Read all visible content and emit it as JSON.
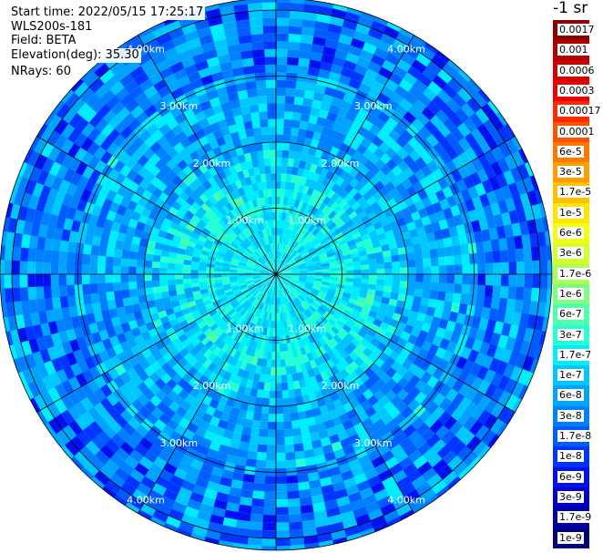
{
  "header": {
    "start_time": "Start time: 2022/05/15 17:25:17",
    "instrument": "WLS200s-181",
    "field": "Field: BETA",
    "elevation": "Elevation(deg): 35.30",
    "nrays": "NRays: 60"
  },
  "colorbar": {
    "unit": "-1 sr",
    "entries": [
      {
        "label": "0.0017",
        "color": "#8b0000"
      },
      {
        "label": "0.001",
        "color": "#b00000"
      },
      {
        "label": "0.0006",
        "color": "#d40000"
      },
      {
        "label": "0.0003",
        "color": "#ee0000"
      },
      {
        "label": "0.00017",
        "color": "#ff2a00"
      },
      {
        "label": "0.0001",
        "color": "#ff5000"
      },
      {
        "label": "6e-5",
        "color": "#ff7800"
      },
      {
        "label": "3e-5",
        "color": "#ff9c00"
      },
      {
        "label": "1.7e-5",
        "color": "#ffc000"
      },
      {
        "label": "1e-5",
        "color": "#ffe400"
      },
      {
        "label": "6e-6",
        "color": "#f4ff0a"
      },
      {
        "label": "3e-6",
        "color": "#d2ff2d"
      },
      {
        "label": "1.7e-6",
        "color": "#aaff55"
      },
      {
        "label": "1e-6",
        "color": "#7eff80"
      },
      {
        "label": "6e-7",
        "color": "#50ffaa"
      },
      {
        "label": "3e-7",
        "color": "#24ffd4"
      },
      {
        "label": "1.7e-7",
        "color": "#00ecff"
      },
      {
        "label": "1e-7",
        "color": "#00c8ff"
      },
      {
        "label": "6e-8",
        "color": "#00a4ff"
      },
      {
        "label": "3e-8",
        "color": "#0080ff"
      },
      {
        "label": "1.7e-8",
        "color": "#005cff"
      },
      {
        "label": "1e-8",
        "color": "#0034ff"
      },
      {
        "label": "6e-9",
        "color": "#0010ee"
      },
      {
        "label": "3e-9",
        "color": "#0000c8"
      },
      {
        "label": "1.7e-9",
        "color": "#0000a0"
      },
      {
        "label": "1e-9",
        "color": "#00007a"
      }
    ]
  },
  "chart_data": {
    "type": "heatmap",
    "projection": "polar (PPI scan)",
    "field": "BETA",
    "elevation_deg": 35.3,
    "n_rays": 60,
    "range_rings_km": [
      1.0,
      2.0,
      3.0,
      4.0
    ],
    "range_ring_labels": [
      "1.00km",
      "2.00km",
      "3.00km",
      "4.00km"
    ],
    "spoke_interval_deg": 30,
    "max_range_km": 4.2,
    "radial_profile": [
      {
        "range_km": 0.25,
        "value": 1.7e-07
      },
      {
        "range_km": 0.75,
        "value": 1.7e-07
      },
      {
        "range_km": 1.25,
        "value": 1.7e-07
      },
      {
        "range_km": 1.75,
        "value": 1e-07
      },
      {
        "range_km": 2.25,
        "value": 6e-08
      },
      {
        "range_km": 2.75,
        "value": 6e-08
      },
      {
        "range_km": 3.25,
        "value": 3e-08
      },
      {
        "range_km": 3.75,
        "value": 3e-08
      },
      {
        "range_km": 4.1,
        "value": 3e-08
      }
    ]
  }
}
